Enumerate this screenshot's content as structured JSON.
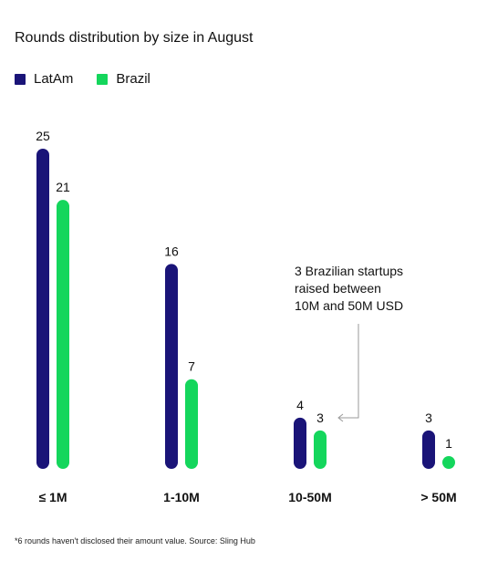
{
  "title": "Rounds distribution by size in August",
  "colors": {
    "latam": "#1a1478",
    "brazil": "#14d65c",
    "annotation": "#9a9a9a"
  },
  "legend": [
    {
      "label": "LatAm",
      "color": "#1a1478"
    },
    {
      "label": "Brazil",
      "color": "#14d65c"
    }
  ],
  "chart_data": {
    "type": "bar",
    "title": "Rounds distribution by size in August",
    "categories": [
      "≤ 1M",
      "1-10M",
      "10-50M",
      "> 50M"
    ],
    "series": [
      {
        "name": "LatAm",
        "values": [
          25,
          16,
          4,
          3
        ]
      },
      {
        "name": "Brazil",
        "values": [
          21,
          7,
          3,
          1
        ]
      }
    ],
    "ylim": [
      0,
      25
    ],
    "grid": false,
    "legend_position": "top-left",
    "annotation": {
      "lines": [
        "3 Brazilian startups",
        "raised between",
        "10M and 50M USD"
      ]
    }
  },
  "footnote": "*6 rounds haven't disclosed their amount value. Source: Sling Hub"
}
